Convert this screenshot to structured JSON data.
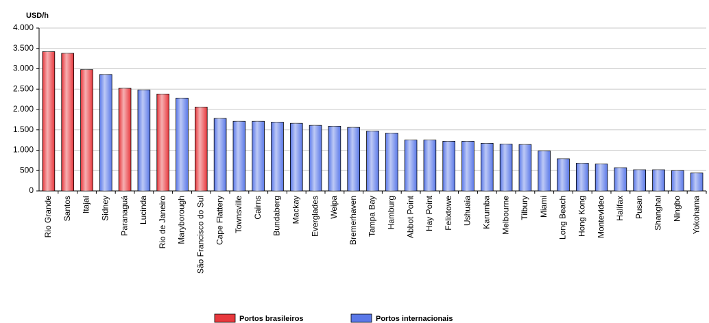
{
  "chart_data": {
    "type": "bar",
    "y_label": "USD/h",
    "categories": [
      "Rio Grande",
      "Santos",
      "Itajaí",
      "Sidney",
      "Paranaguá",
      "Lucinda",
      "Rio de Janeiro",
      "Maryborough",
      "São Francisco do Sul",
      "Cape Flattery",
      "Townsville",
      "Cairns",
      "Bundaberg",
      "Mackay",
      "Everglades",
      "Weipa",
      "Bremerhaven",
      "Tampa Bay",
      "Hamburg",
      "Abbot Point",
      "Hay Point",
      "Felixtowe",
      "Ushuaia",
      "Karumba",
      "Melbourne",
      "Tilbury",
      "Miami",
      "Long Beach",
      "Hong Kong",
      "Montevideo",
      "Halifax",
      "Pusan",
      "Shanghai",
      "Ningbo",
      "Yokohama"
    ],
    "series": [
      {
        "name": "Portos brasileiros",
        "color": "#e8383d",
        "values": [
          3420,
          3380,
          2980,
          null,
          2520,
          null,
          2380,
          null,
          2060,
          null,
          null,
          null,
          null,
          null,
          null,
          null,
          null,
          null,
          null,
          null,
          null,
          null,
          null,
          null,
          null,
          null,
          null,
          null,
          null,
          null,
          null,
          null,
          null,
          null,
          null
        ]
      },
      {
        "name": "Portos internacionais",
        "color": "#5a78e8",
        "values": [
          null,
          null,
          null,
          2860,
          null,
          2480,
          null,
          2280,
          null,
          1780,
          1710,
          1710,
          1690,
          1660,
          1610,
          1590,
          1560,
          1470,
          1420,
          1250,
          1250,
          1220,
          1220,
          1170,
          1150,
          1140,
          980,
          790,
          680,
          660,
          570,
          520,
          520,
          500,
          440
        ]
      }
    ],
    "ylim": [
      0,
      4000
    ],
    "yticks": [
      0,
      {
        "value": 500,
        "label": "500"
      },
      {
        "value": 1000,
        "label": "1.000"
      },
      {
        "value": 1500,
        "label": "1.500"
      },
      {
        "value": 2000,
        "label": "2.000"
      },
      {
        "value": 2500,
        "label": "2.500"
      },
      {
        "value": 3000,
        "label": "3.000"
      },
      {
        "value": 3500,
        "label": "3.500"
      },
      {
        "value": 4000,
        "label": "4.000"
      }
    ],
    "grid": true
  }
}
